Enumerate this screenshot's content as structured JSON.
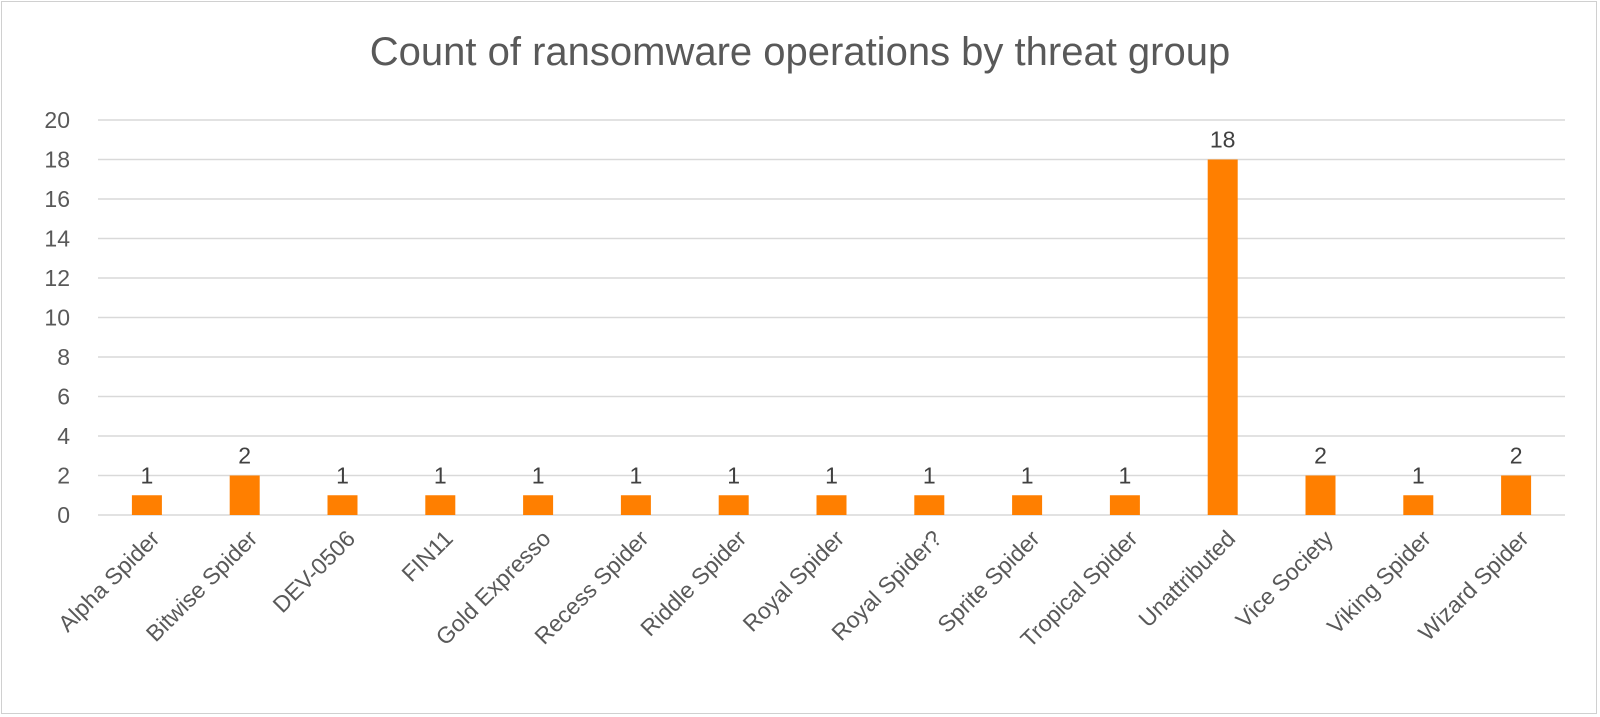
{
  "chart_data": {
    "type": "bar",
    "title": "Count of ransomware operations by threat group",
    "xlabel": "",
    "ylabel": "",
    "ylim": [
      0,
      20
    ],
    "yticks": [
      0,
      2,
      4,
      6,
      8,
      10,
      12,
      14,
      16,
      18,
      20
    ],
    "grid": true,
    "legend": "none",
    "bar_color": "#FF7F00",
    "categories": [
      "Alpha Spider",
      "Bitwise Spider",
      "DEV-0506",
      "FIN11",
      "Gold Expresso",
      "Recess Spider",
      "Riddle Spider",
      "Royal Spider",
      "Royal Spider?",
      "Sprite Spider",
      "Tropical Spider",
      "Unattributed",
      "Vice Society",
      "Viking Spider",
      "Wizard Spider"
    ],
    "values": [
      1,
      2,
      1,
      1,
      1,
      1,
      1,
      1,
      1,
      1,
      1,
      18,
      2,
      1,
      2
    ],
    "data_labels": [
      "1",
      "2",
      "1",
      "1",
      "1",
      "1",
      "1",
      "1",
      "1",
      "1",
      "1",
      "18",
      "2",
      "1",
      "2"
    ]
  }
}
